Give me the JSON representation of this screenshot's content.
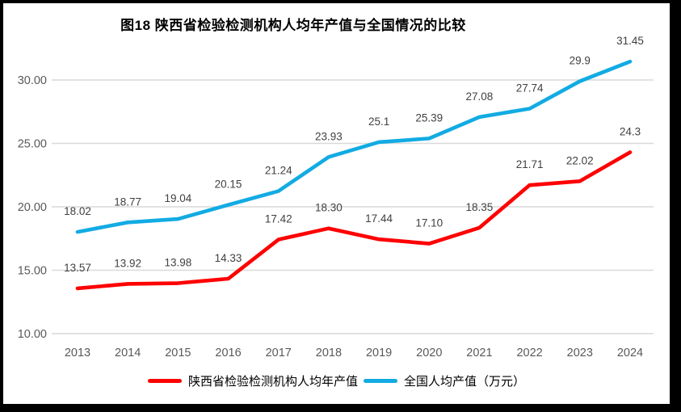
{
  "title": "图18 陕西省检验检测机构人均年产值与全国情况的比较",
  "chart_data": {
    "type": "line",
    "title": "图18 陕西省检验检测机构人均年产值与全国情况的比较",
    "x": [
      "2013",
      "2014",
      "2015",
      "2016",
      "2017",
      "2018",
      "2019",
      "2020",
      "2021",
      "2022",
      "2023",
      "2024"
    ],
    "series": [
      {
        "name": "陕西省检验检测机构人均年产值",
        "color": "#FE0000",
        "values": [
          13.57,
          13.92,
          13.98,
          14.33,
          17.42,
          18.3,
          17.44,
          17.1,
          18.35,
          21.71,
          22.02,
          24.3
        ],
        "labels": [
          "13.57",
          "13.92",
          "13.98",
          "14.33",
          "17.42",
          "18.30",
          "17.44",
          "17.10",
          "18.35",
          "21.71",
          "22.02",
          "24.3"
        ]
      },
      {
        "name": "全国人均产值（万元）",
        "color": "#12ABE3",
        "values": [
          18.02,
          18.77,
          19.04,
          20.15,
          21.24,
          23.93,
          25.1,
          25.39,
          27.08,
          27.74,
          29.9,
          31.45
        ],
        "labels": [
          "18.02",
          "18.77",
          "19.04",
          "20.15",
          "21.24",
          "23.93",
          "25.1",
          "25.39",
          "27.08",
          "27.74",
          "29.9",
          "31.45"
        ]
      }
    ],
    "ylim": [
      10,
      32
    ],
    "yticks": [
      {
        "value": 10,
        "label": "10.00"
      },
      {
        "value": 15,
        "label": "15.00"
      },
      {
        "value": 20,
        "label": "20.00"
      },
      {
        "value": 25,
        "label": "25.00"
      },
      {
        "value": 30,
        "label": "30.00"
      }
    ],
    "grid": true,
    "legend_position": "bottom",
    "grid_color": "#D9D9D9",
    "axis_label_color": "#595959",
    "data_label_color": "#404040"
  }
}
